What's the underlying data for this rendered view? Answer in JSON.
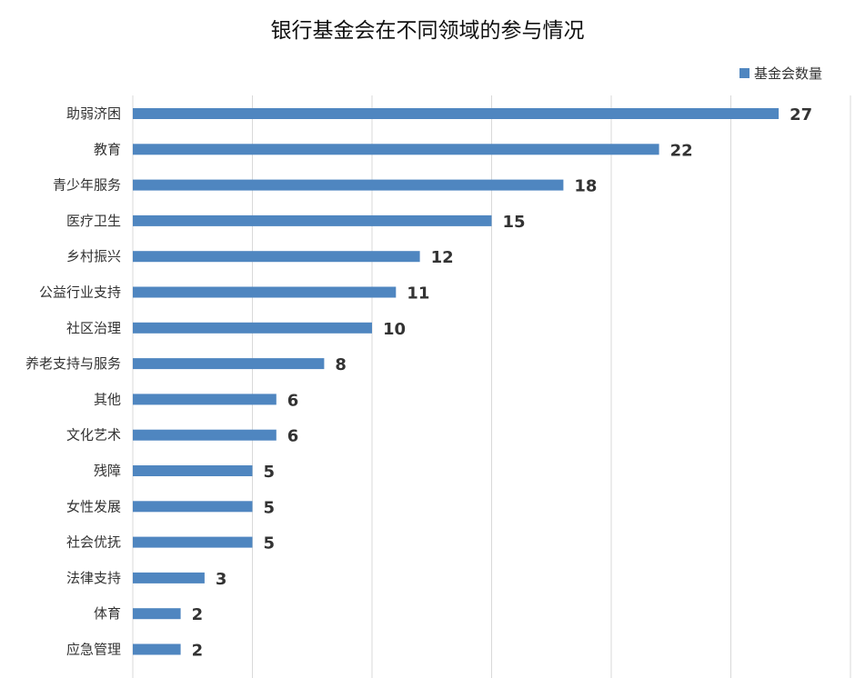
{
  "chart_data": {
    "type": "bar",
    "orientation": "horizontal",
    "title": "银行基金会在不同领域的参与情况",
    "categories": [
      "助弱济困",
      "教育",
      "青少年服务",
      "医疗卫生",
      "乡村振兴",
      "公益行业支持",
      "社区治理",
      "养老支持与服务",
      "其他",
      "文化艺术",
      "残障",
      "女性发展",
      "社会优抚",
      "法律支持",
      "体育",
      "应急管理"
    ],
    "series": [
      {
        "name": "基金会数量",
        "values": [
          27,
          22,
          18,
          15,
          12,
          11,
          10,
          8,
          6,
          6,
          5,
          5,
          5,
          3,
          2,
          2
        ],
        "color": "#4f86c0"
      }
    ],
    "xlim": [
      0,
      30
    ],
    "grid": true,
    "x_tick_labels_visible": false,
    "legend_position": "top-right"
  }
}
